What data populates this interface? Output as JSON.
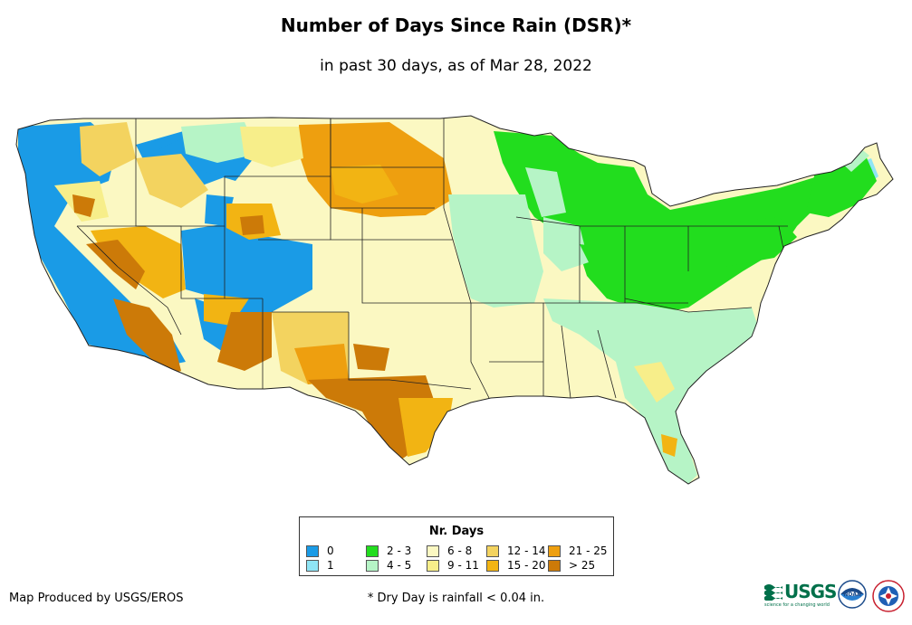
{
  "title": "Number of Days Since Rain (DSR)*",
  "subtitle": "in past 30 days, as of Mar 28, 2022",
  "legend": {
    "title": "Nr. Days",
    "items": [
      {
        "label": "0",
        "color": "#1a9be6"
      },
      {
        "label": "1",
        "color": "#8fe5f5"
      },
      {
        "label": "2 - 3",
        "color": "#22dd1e"
      },
      {
        "label": "4 - 5",
        "color": "#b6f4c6"
      },
      {
        "label": "6 - 8",
        "color": "#fbf8c2"
      },
      {
        "label": "9 - 11",
        "color": "#f7ee8a"
      },
      {
        "label": "12 - 14",
        "color": "#f3d35f"
      },
      {
        "label": "15 - 20",
        "color": "#f2b413"
      },
      {
        "label": "21 - 25",
        "color": "#ee9f0f"
      },
      {
        "label": "> 25",
        "color": "#cc7a08"
      }
    ]
  },
  "credit": "Map Produced by USGS/EROS",
  "footnote": "* Dry Day is rainfall < 0.04 in.",
  "logos": {
    "usgs": "USGS",
    "usgs_tagline": "science for a changing world",
    "noaa": "NOAA"
  }
}
